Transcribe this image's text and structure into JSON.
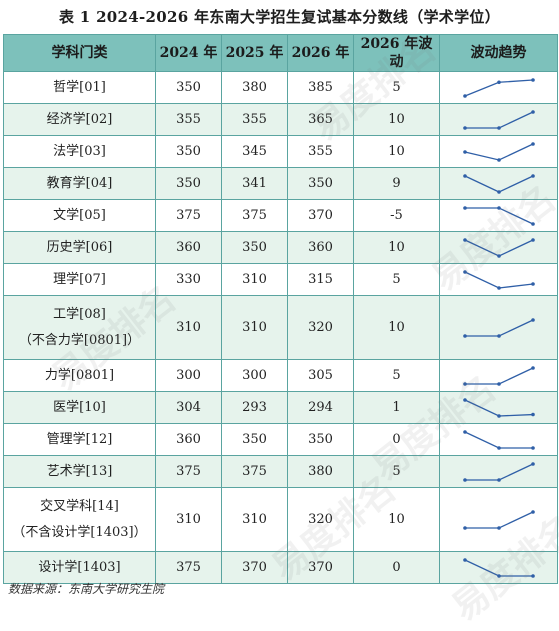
{
  "title": "表 1  2024-2026 年东南大学招生复试基本分数线（学术学位）",
  "headers": [
    "学科门类",
    "2024 年",
    "2025 年",
    "2026 年",
    "2026 年波动",
    "波动趋势"
  ],
  "rows": [
    {
      "subject": [
        "哲学[01]"
      ],
      "y2024": "350",
      "y2025": "380",
      "y2026": "385",
      "change": "5"
    },
    {
      "subject": [
        "经济学[02]"
      ],
      "y2024": "355",
      "y2025": "355",
      "y2026": "365",
      "change": "10"
    },
    {
      "subject": [
        "法学[03]"
      ],
      "y2024": "350",
      "y2025": "345",
      "y2026": "355",
      "change": "10"
    },
    {
      "subject": [
        "教育学[04]"
      ],
      "y2024": "350",
      "y2025": "341",
      "y2026": "350",
      "change": "9"
    },
    {
      "subject": [
        "文学[05]"
      ],
      "y2024": "375",
      "y2025": "375",
      "y2026": "370",
      "change": "-5"
    },
    {
      "subject": [
        "历史学[06]"
      ],
      "y2024": "360",
      "y2025": "350",
      "y2026": "360",
      "change": "10"
    },
    {
      "subject": [
        "理学[07]"
      ],
      "y2024": "330",
      "y2025": "310",
      "y2026": "315",
      "change": "5"
    },
    {
      "subject": [
        "工学[08]",
        "（不含力学[0801]）"
      ],
      "y2024": "310",
      "y2025": "310",
      "y2026": "320",
      "change": "10"
    },
    {
      "subject": [
        "力学[0801]"
      ],
      "y2024": "300",
      "y2025": "300",
      "y2026": "305",
      "change": "5"
    },
    {
      "subject": [
        "医学[10]"
      ],
      "y2024": "304",
      "y2025": "293",
      "y2026": "294",
      "change": "1"
    },
    {
      "subject": [
        "管理学[12]"
      ],
      "y2024": "360",
      "y2025": "350",
      "y2026": "350",
      "change": "0"
    },
    {
      "subject": [
        "艺术学[13]"
      ],
      "y2024": "375",
      "y2025": "375",
      "y2026": "380",
      "change": "5"
    },
    {
      "subject": [
        "交叉学科[14]",
        "（不含设计学[1403]）"
      ],
      "y2024": "310",
      "y2025": "310",
      "y2026": "320",
      "change": "10"
    },
    {
      "subject": [
        "设计学[1403]"
      ],
      "y2024": "375",
      "y2025": "370",
      "y2026": "370",
      "change": "0"
    }
  ],
  "source": "数据来源：东南大学研究生院",
  "watermark": "易度排名",
  "colors": {
    "header_bg": "#7dc1bb",
    "stripe_bg": "#e6f3ec",
    "border": "#5aa4a0",
    "spark_line": "#2f5fa7"
  }
}
